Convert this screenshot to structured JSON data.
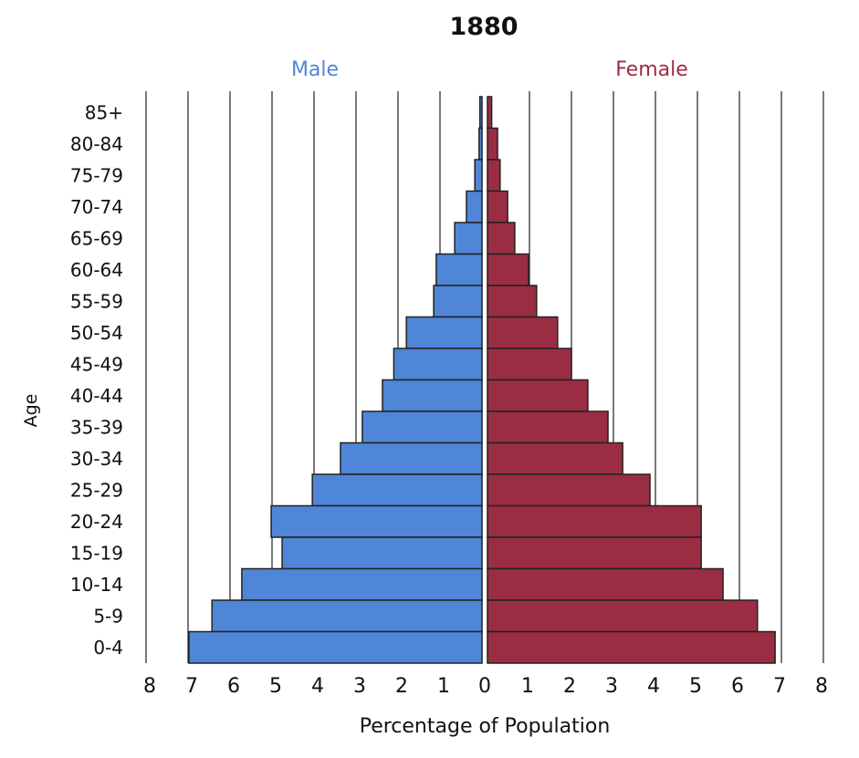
{
  "chart_data": {
    "type": "bar",
    "orientation": "horizontal-pyramid",
    "title": "1880",
    "xlabel": "Percentage of Population",
    "ylabel": "Age",
    "xlim": [
      0,
      8
    ],
    "x_ticks": [
      "8",
      "7",
      "6",
      "5",
      "4",
      "3",
      "2",
      "1",
      "0",
      "1",
      "2",
      "3",
      "4",
      "5",
      "6",
      "7",
      "8"
    ],
    "grid": "vertical",
    "categories": [
      "85+",
      "80-84",
      "75-79",
      "70-74",
      "65-69",
      "60-64",
      "55-59",
      "50-54",
      "45-49",
      "40-44",
      "35-39",
      "30-34",
      "25-29",
      "20-24",
      "15-19",
      "10-14",
      "5-9",
      "0-4"
    ],
    "series": [
      {
        "name": "Male",
        "color": "#4f86d8",
        "values": [
          0.05,
          0.07,
          0.17,
          0.37,
          0.65,
          1.09,
          1.15,
          1.8,
          2.1,
          2.37,
          2.85,
          3.37,
          4.04,
          5.02,
          4.76,
          5.72,
          6.43,
          6.98
        ]
      },
      {
        "name": "Female",
        "color": "#9b2d43",
        "values": [
          0.1,
          0.24,
          0.3,
          0.48,
          0.65,
          0.98,
          1.17,
          1.67,
          2.0,
          2.39,
          2.87,
          3.22,
          3.87,
          5.09,
          5.09,
          5.61,
          6.43,
          6.85
        ]
      }
    ]
  }
}
